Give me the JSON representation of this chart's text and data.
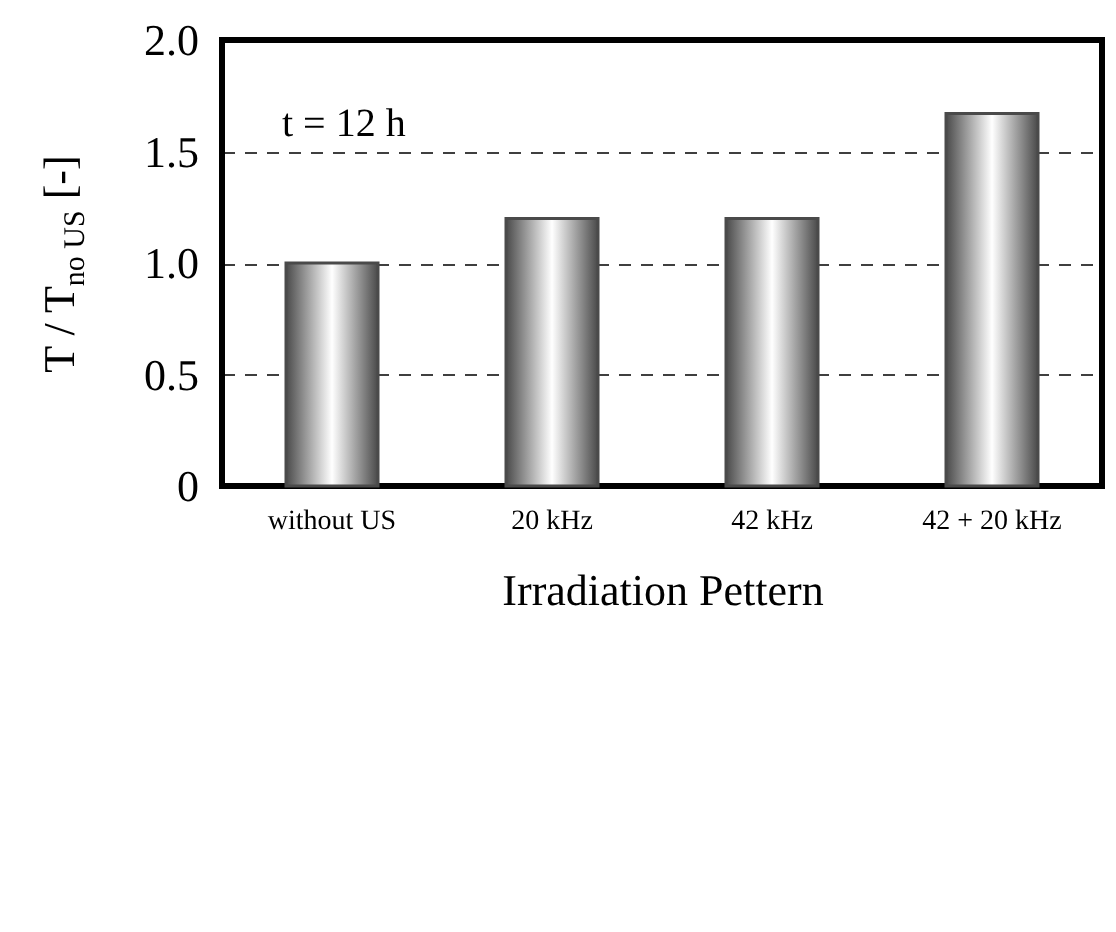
{
  "chart_data": {
    "type": "bar",
    "xlabel": "Irradiation Pettern",
    "ylabel": "T / T$_{no US}$ [-]",
    "categories": [
      "without US",
      "20 kHz",
      "42 kHz",
      "42 + 20 kHz"
    ],
    "values": [
      1.0,
      1.2,
      1.2,
      1.67
    ],
    "color": "#4a4a4a",
    "ylim": [
      0,
      2.0
    ],
    "yticks": [
      {
        "value": 0,
        "label": "0"
      },
      {
        "value": 0.5,
        "label": "0.5"
      },
      {
        "value": 1.0,
        "label": "1.0"
      },
      {
        "value": 1.5,
        "label": "1.5"
      },
      {
        "value": 2.0,
        "label": "2.0"
      }
    ],
    "grid": "y",
    "annotations": [
      "t = 12 h"
    ]
  }
}
